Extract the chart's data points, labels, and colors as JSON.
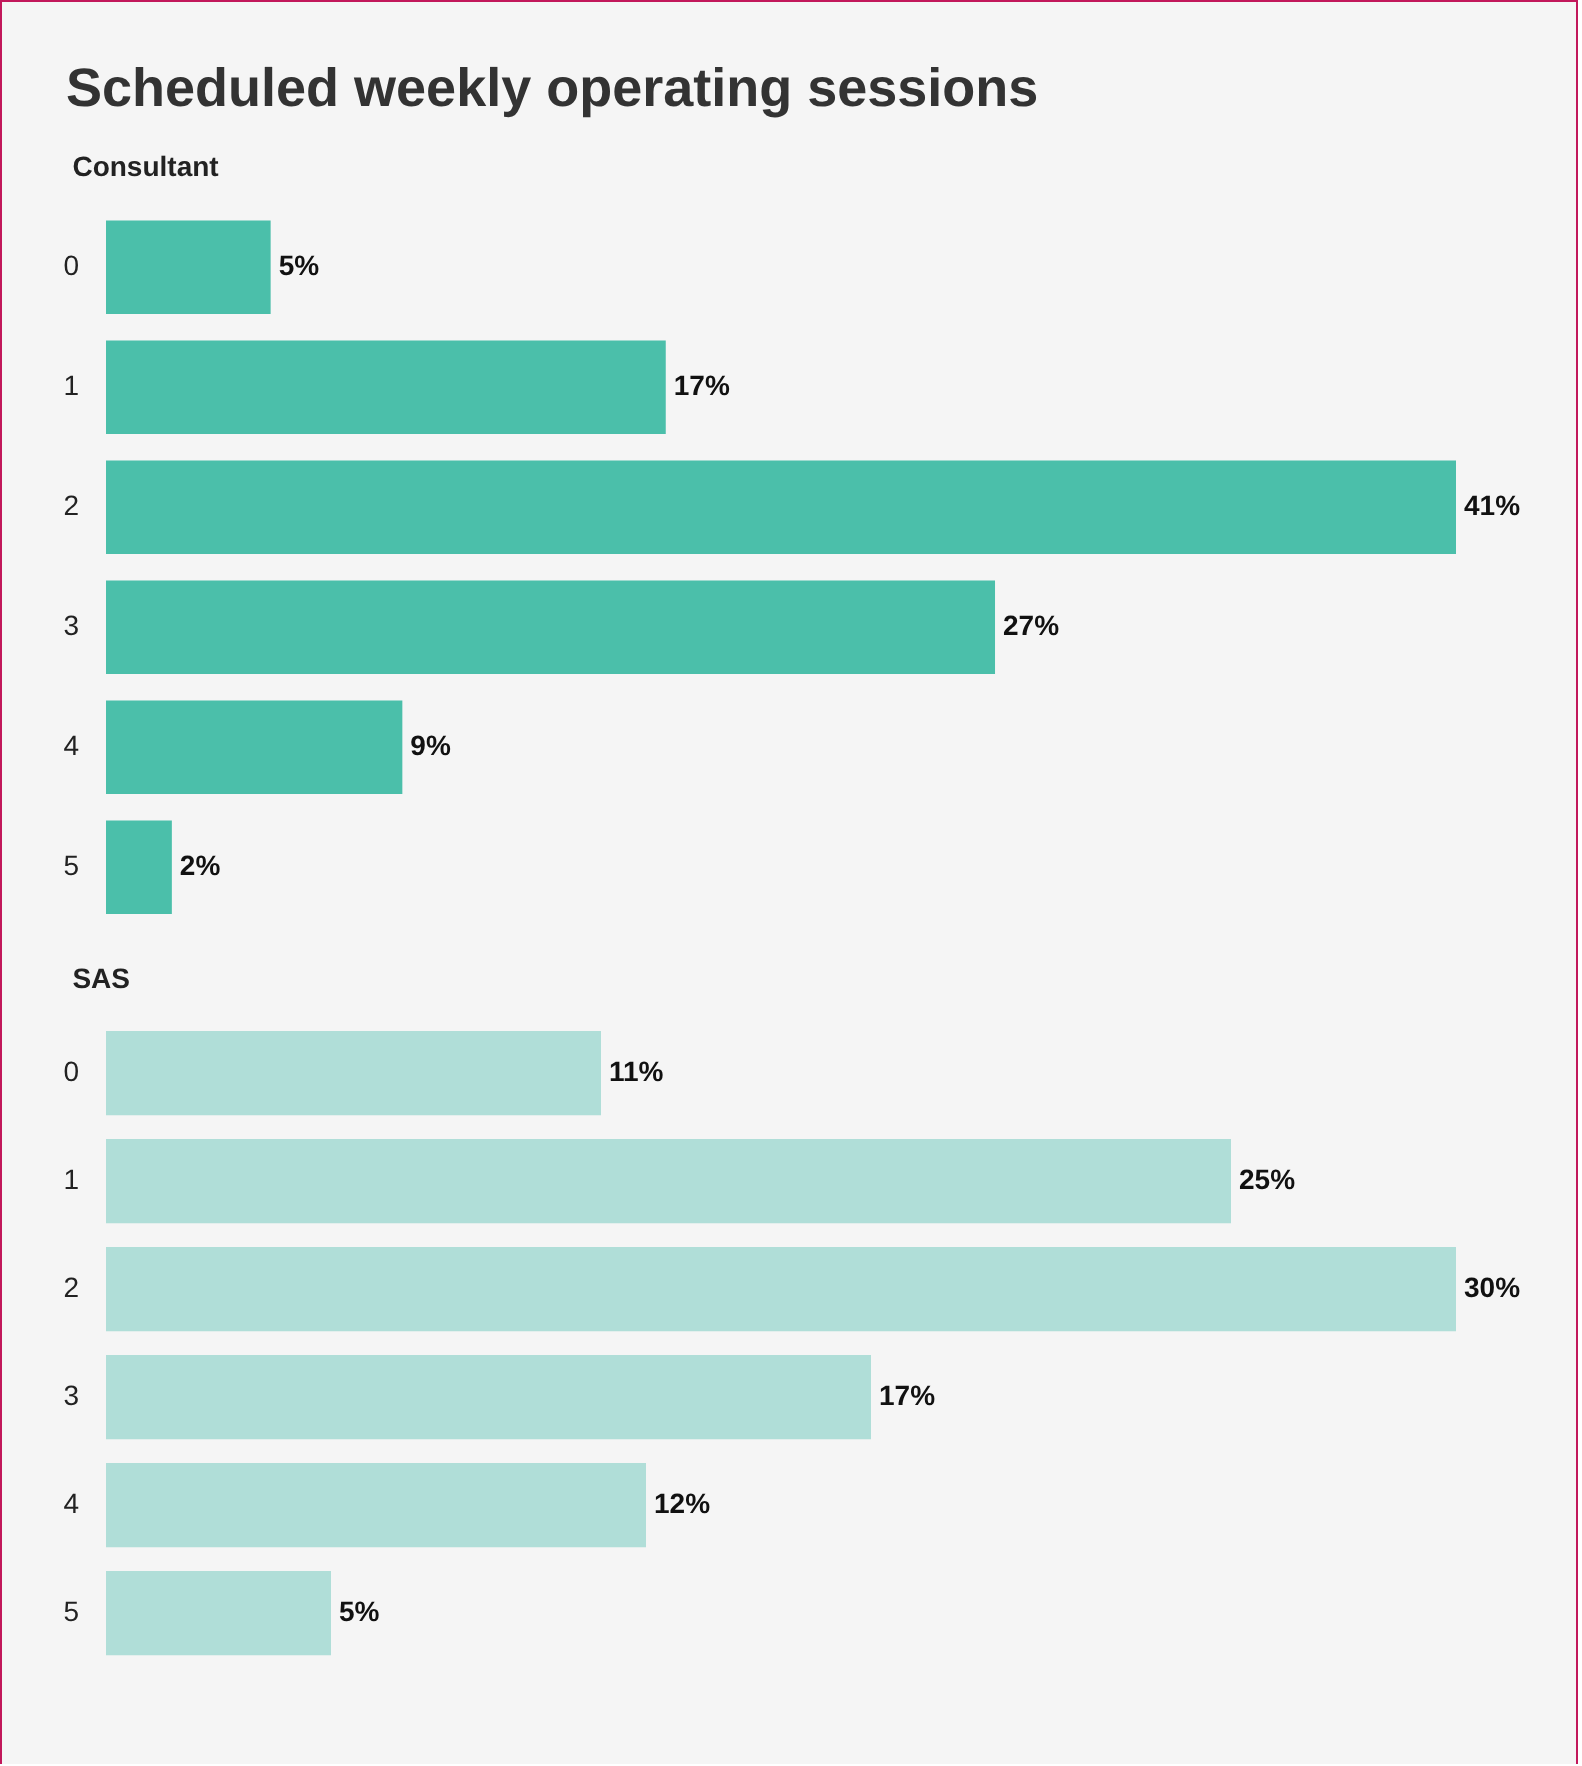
{
  "chart_data": [
    {
      "type": "bar",
      "orientation": "horizontal",
      "title": "Scheduled weekly operating sessions",
      "subtitle": "Consultant",
      "categories": [
        "0",
        "1",
        "2",
        "3",
        "4",
        "5"
      ],
      "values": [
        5,
        17,
        41,
        27,
        9,
        2
      ],
      "color": "#4bbfaa",
      "value_labels": [
        "5%",
        "17%",
        "41%",
        "27%",
        "9%",
        "2%"
      ],
      "tick_labels": "y",
      "grid": false
    },
    {
      "type": "bar",
      "orientation": "horizontal",
      "subtitle": "SAS",
      "categories": [
        "0",
        "1",
        "2",
        "3",
        "4",
        "5"
      ],
      "values": [
        11,
        25,
        30,
        17,
        12,
        5
      ],
      "color": "#b0ded8",
      "value_labels": [
        "11%",
        "25%",
        "30%",
        "17%",
        "12%",
        "5%"
      ],
      "tick_labels": "y",
      "grid": false
    }
  ]
}
